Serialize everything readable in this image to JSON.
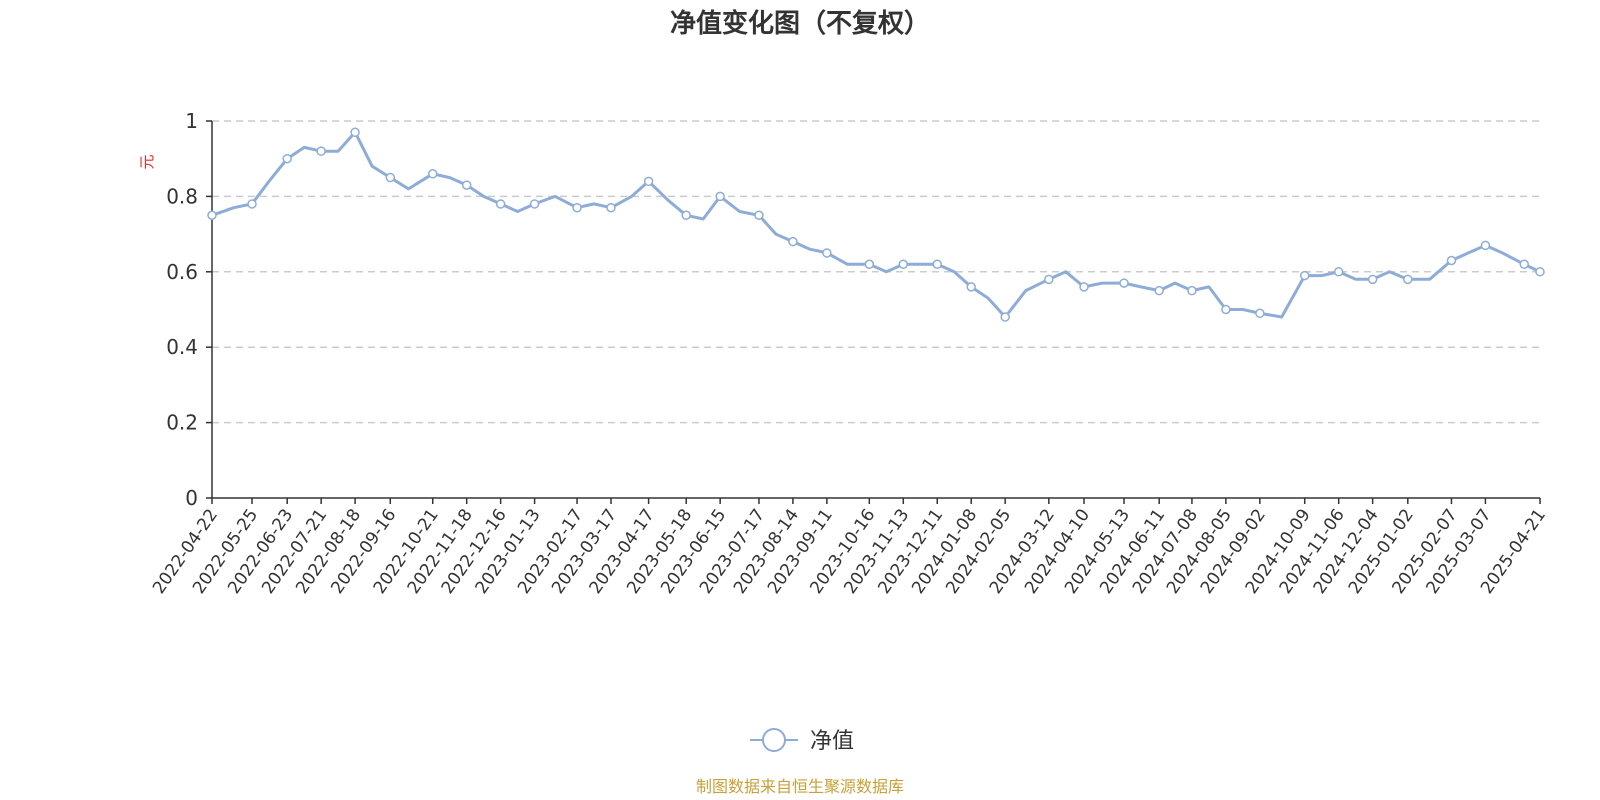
{
  "colors": {
    "line": "#8eacd8",
    "grid": "#cccccc",
    "axis": "#333333",
    "ylabel": "#e8262a",
    "source": "#c9a13b",
    "marker_fill": "#ffffff"
  },
  "chart_data": {
    "type": "line",
    "title": "净值变化图（不复权）",
    "ylabel": "元",
    "ylim": [
      0,
      1
    ],
    "yticks": [
      "0",
      "0.2",
      "0.4",
      "0.6",
      "0.8",
      "1"
    ],
    "grid": true,
    "legend_position": "bottom-center",
    "x_tick_labels": [
      "2022-04-22",
      "2022-05-25",
      "2022-06-23",
      "2022-07-21",
      "2022-08-18",
      "2022-09-16",
      "2022-10-21",
      "2022-11-18",
      "2022-12-16",
      "2023-01-13",
      "2023-02-17",
      "2023-03-17",
      "2023-04-17",
      "2023-05-18",
      "2023-06-15",
      "2023-07-17",
      "2023-08-14",
      "2023-09-11",
      "2023-10-16",
      "2023-11-13",
      "2023-12-11",
      "2024-01-08",
      "2024-02-05",
      "2024-03-12",
      "2024-04-10",
      "2024-05-13",
      "2024-06-11",
      "2024-07-08",
      "2024-08-05",
      "2024-09-02",
      "2024-10-09",
      "2024-11-06",
      "2024-12-04",
      "2025-01-02",
      "2025-02-07",
      "2025-03-07",
      "2025-04-21"
    ],
    "series": [
      {
        "name": "净值",
        "x": [
          "2022-04-22",
          "2022-05-10",
          "2022-05-25",
          "2022-06-08",
          "2022-06-23",
          "2022-07-07",
          "2022-07-21",
          "2022-08-04",
          "2022-08-18",
          "2022-09-01",
          "2022-09-16",
          "2022-10-01",
          "2022-10-21",
          "2022-11-04",
          "2022-11-18",
          "2022-12-02",
          "2022-12-16",
          "2022-12-30",
          "2023-01-13",
          "2023-01-30",
          "2023-02-17",
          "2023-03-03",
          "2023-03-17",
          "2023-04-03",
          "2023-04-17",
          "2023-05-03",
          "2023-05-18",
          "2023-06-01",
          "2023-06-15",
          "2023-07-01",
          "2023-07-17",
          "2023-07-31",
          "2023-08-14",
          "2023-08-28",
          "2023-09-11",
          "2023-09-28",
          "2023-10-16",
          "2023-10-30",
          "2023-11-13",
          "2023-11-27",
          "2023-12-11",
          "2023-12-25",
          "2024-01-08",
          "2024-01-22",
          "2024-02-05",
          "2024-02-22",
          "2024-03-12",
          "2024-03-26",
          "2024-04-10",
          "2024-04-25",
          "2024-05-13",
          "2024-05-27",
          "2024-06-11",
          "2024-06-24",
          "2024-07-08",
          "2024-07-22",
          "2024-08-05",
          "2024-08-19",
          "2024-09-02",
          "2024-09-20",
          "2024-10-09",
          "2024-10-23",
          "2024-11-06",
          "2024-11-20",
          "2024-12-04",
          "2024-12-18",
          "2025-01-02",
          "2025-01-20",
          "2025-02-07",
          "2025-02-21",
          "2025-03-07",
          "2025-03-21",
          "2025-04-08",
          "2025-04-21"
        ],
        "values": [
          0.75,
          0.77,
          0.78,
          0.84,
          0.9,
          0.93,
          0.92,
          0.92,
          0.97,
          0.88,
          0.85,
          0.82,
          0.86,
          0.85,
          0.83,
          0.8,
          0.78,
          0.76,
          0.78,
          0.8,
          0.77,
          0.78,
          0.77,
          0.8,
          0.84,
          0.79,
          0.75,
          0.74,
          0.8,
          0.76,
          0.75,
          0.7,
          0.68,
          0.66,
          0.65,
          0.62,
          0.62,
          0.6,
          0.62,
          0.62,
          0.62,
          0.6,
          0.56,
          0.53,
          0.48,
          0.55,
          0.58,
          0.6,
          0.56,
          0.57,
          0.57,
          0.56,
          0.55,
          0.57,
          0.55,
          0.56,
          0.5,
          0.5,
          0.49,
          0.48,
          0.59,
          0.59,
          0.6,
          0.58,
          0.58,
          0.6,
          0.58,
          0.58,
          0.63,
          0.65,
          0.67,
          0.65,
          0.62,
          0.6
        ]
      }
    ],
    "source_note": "制图数据来自恒生聚源数据库"
  }
}
